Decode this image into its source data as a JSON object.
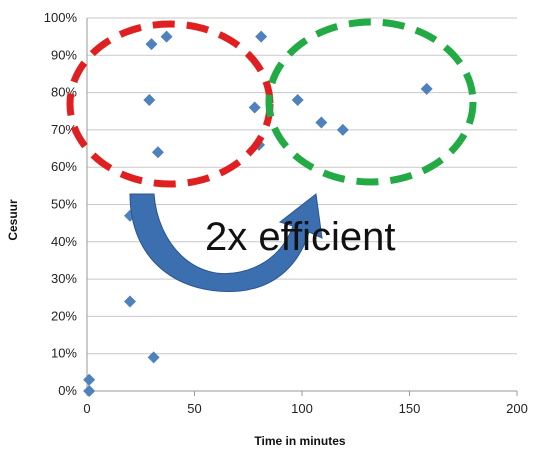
{
  "chart_data": {
    "type": "scatter",
    "title": "",
    "xlabel": "Time in minutes",
    "ylabel": "Cesuur",
    "xlim": [
      0,
      200
    ],
    "ylim": [
      0,
      1
    ],
    "x_ticks": [
      0,
      50,
      100,
      150,
      200
    ],
    "y_ticks": [
      0,
      0.1,
      0.2,
      0.3,
      0.4,
      0.5,
      0.6,
      0.7,
      0.8,
      0.9,
      1.0
    ],
    "x_tick_labels": [
      "0",
      "50",
      "100",
      "150",
      "200"
    ],
    "y_tick_labels": [
      "0%",
      "10%",
      "20%",
      "30%",
      "40%",
      "50%",
      "60%",
      "70%",
      "80%",
      "90%",
      "100%"
    ],
    "grid": "horizontal",
    "marker_color": "#4f81bd",
    "points": [
      {
        "x": 1,
        "y": 0.0
      },
      {
        "x": 1,
        "y": 0.03
      },
      {
        "x": 20,
        "y": 0.24
      },
      {
        "x": 20,
        "y": 0.47
      },
      {
        "x": 31,
        "y": 0.09
      },
      {
        "x": 29,
        "y": 0.78
      },
      {
        "x": 30,
        "y": 0.93
      },
      {
        "x": 33,
        "y": 0.64
      },
      {
        "x": 37,
        "y": 0.95
      },
      {
        "x": 78,
        "y": 0.76
      },
      {
        "x": 80,
        "y": 0.66
      },
      {
        "x": 81,
        "y": 0.95
      },
      {
        "x": 98,
        "y": 0.78
      },
      {
        "x": 109,
        "y": 0.72
      },
      {
        "x": 119,
        "y": 0.7
      },
      {
        "x": 158,
        "y": 0.81
      }
    ],
    "annotations": {
      "text": "2x efficient",
      "red_ellipse_color": "#e02020",
      "green_ellipse_color": "#22aa44",
      "arrow_color": "#3b6fb0"
    }
  }
}
